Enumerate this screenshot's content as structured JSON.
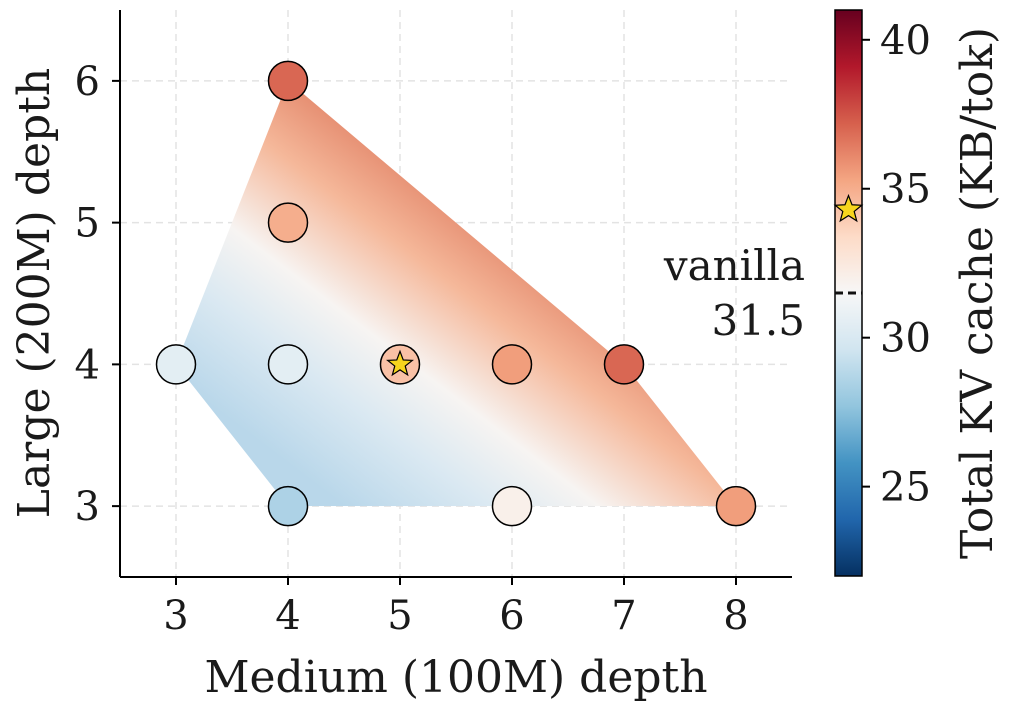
{
  "chart_data": {
    "type": "scatter",
    "xlabel": "Medium (100M) depth",
    "ylabel": "Large (200M) depth",
    "xlim": [
      2.5,
      8.5
    ],
    "ylim": [
      2.5,
      6.5
    ],
    "x_ticks": [
      3,
      4,
      5,
      6,
      7,
      8
    ],
    "y_ticks": [
      3,
      4,
      5,
      6
    ],
    "grid": true,
    "colorbar": {
      "label": "Total KV cache (KB/tok)",
      "colormap": "RdBu_r",
      "range": [
        22,
        41
      ],
      "ticks": [
        25,
        30,
        35,
        40
      ],
      "reference_value": 31.5,
      "star_value": 34.3
    },
    "points": [
      {
        "x": 3,
        "y": 4,
        "value": 30.5
      },
      {
        "x": 4,
        "y": 3,
        "value": 28.5
      },
      {
        "x": 4,
        "y": 4,
        "value": 30.5
      },
      {
        "x": 4,
        "y": 5,
        "value": 35.0
      },
      {
        "x": 4,
        "y": 6,
        "value": 37.0
      },
      {
        "x": 5,
        "y": 4,
        "value": 34.3,
        "marker": "star"
      },
      {
        "x": 6,
        "y": 3,
        "value": 32.0
      },
      {
        "x": 6,
        "y": 4,
        "value": 35.5
      },
      {
        "x": 7,
        "y": 4,
        "value": 37.0
      },
      {
        "x": 8,
        "y": 3,
        "value": 35.5
      }
    ],
    "annotation": {
      "line1": "vanilla",
      "line2": "31.5"
    }
  }
}
